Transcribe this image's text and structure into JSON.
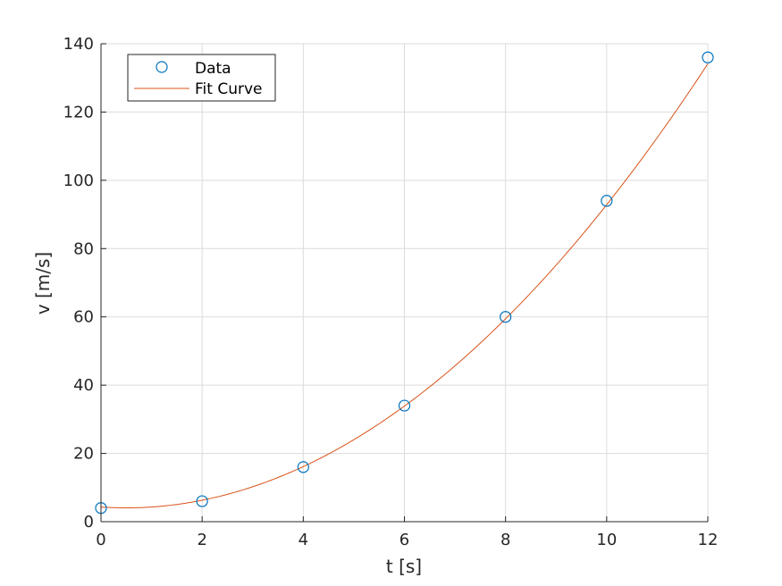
{
  "chart_data": {
    "type": "scatter",
    "xlabel": "t [s]",
    "ylabel": "v [m/s]",
    "xlim": [
      0,
      12
    ],
    "ylim": [
      0,
      140
    ],
    "xticks": [
      0,
      2,
      4,
      6,
      8,
      10,
      12
    ],
    "yticks": [
      0,
      20,
      40,
      60,
      80,
      100,
      120,
      140
    ],
    "grid": true,
    "legend_position": "top-left",
    "series": [
      {
        "name": "Data",
        "marker": "circle",
        "line": "none",
        "color": "#0072BD",
        "x": [
          0,
          2,
          4,
          6,
          8,
          10,
          12
        ],
        "y": [
          4,
          6,
          16,
          34,
          60,
          94,
          136
        ]
      },
      {
        "name": "Fit Curve",
        "marker": "none",
        "line": "solid",
        "color": "#D95319",
        "fit": "quadratic",
        "coefficients": [
          0.9821,
          -0.9643,
          4.2857
        ]
      }
    ]
  }
}
